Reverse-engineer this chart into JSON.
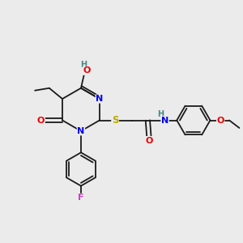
{
  "bg_color": "#ebebeb",
  "bond_color": "#1a1a1a",
  "atom_colors": {
    "N": "#0000ee",
    "O": "#ee0000",
    "S": "#bbaa00",
    "F": "#cc44bb",
    "H": "#448888",
    "C": "#1a1a1a"
  },
  "font_size": 8.0,
  "fig_size": [
    3.0,
    3.0
  ],
  "dpi": 100
}
